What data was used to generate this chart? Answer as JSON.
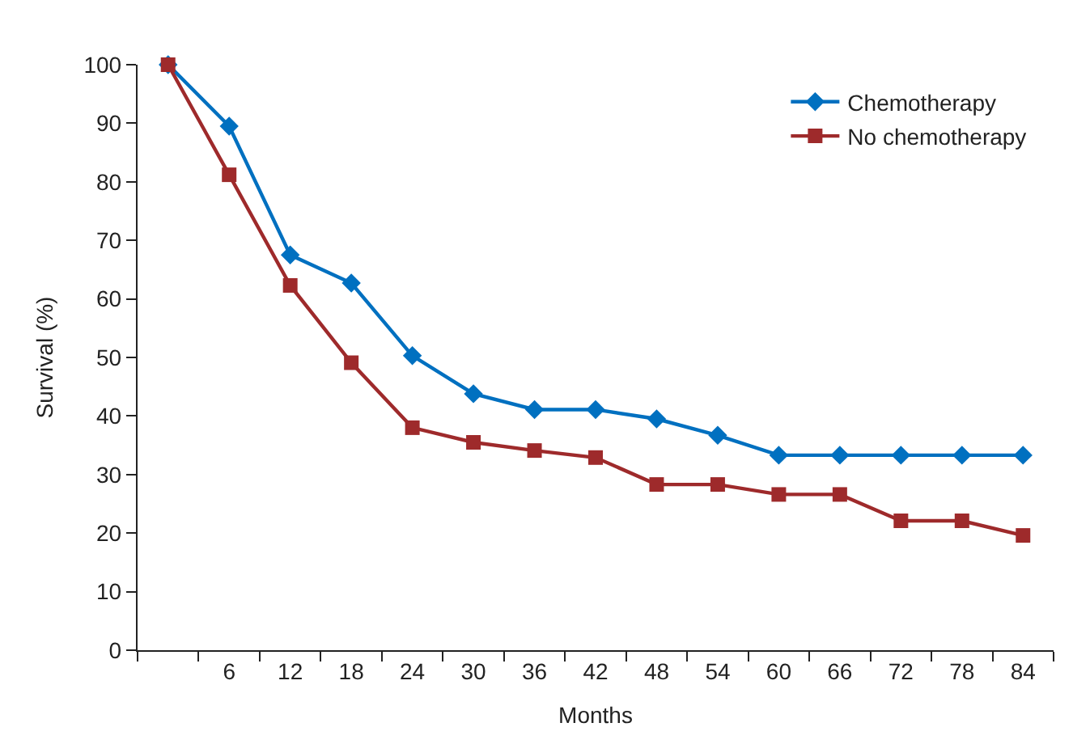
{
  "chart_data": {
    "type": "line",
    "xlabel": "Months",
    "ylabel": "Survival (%)",
    "categories": [
      null,
      "6",
      "12",
      "18",
      "24",
      "30",
      "36",
      "42",
      "48",
      "54",
      "60",
      "66",
      "72",
      "78",
      "84"
    ],
    "series": [
      {
        "name": "Chemotherapy",
        "color": "#0070c0",
        "marker": "diamond",
        "values": [
          100,
          89.5,
          67.5,
          62.7,
          50.3,
          43.8,
          41.1,
          41.1,
          39.5,
          36.7,
          33.3,
          33.3,
          33.3,
          33.3,
          33.3
        ]
      },
      {
        "name": "No chemotherapy",
        "color": "#9e2a2b",
        "marker": "square",
        "values": [
          100,
          81.2,
          62.3,
          49.1,
          38.0,
          35.5,
          34.1,
          32.9,
          28.3,
          28.3,
          26.6,
          26.6,
          22.1,
          22.1,
          19.6
        ]
      }
    ],
    "ylim": [
      0,
      100
    ],
    "yticks": [
      0,
      10,
      20,
      30,
      40,
      50,
      60,
      70,
      80,
      90,
      100
    ],
    "legend": "top right",
    "line_style": "solid"
  }
}
